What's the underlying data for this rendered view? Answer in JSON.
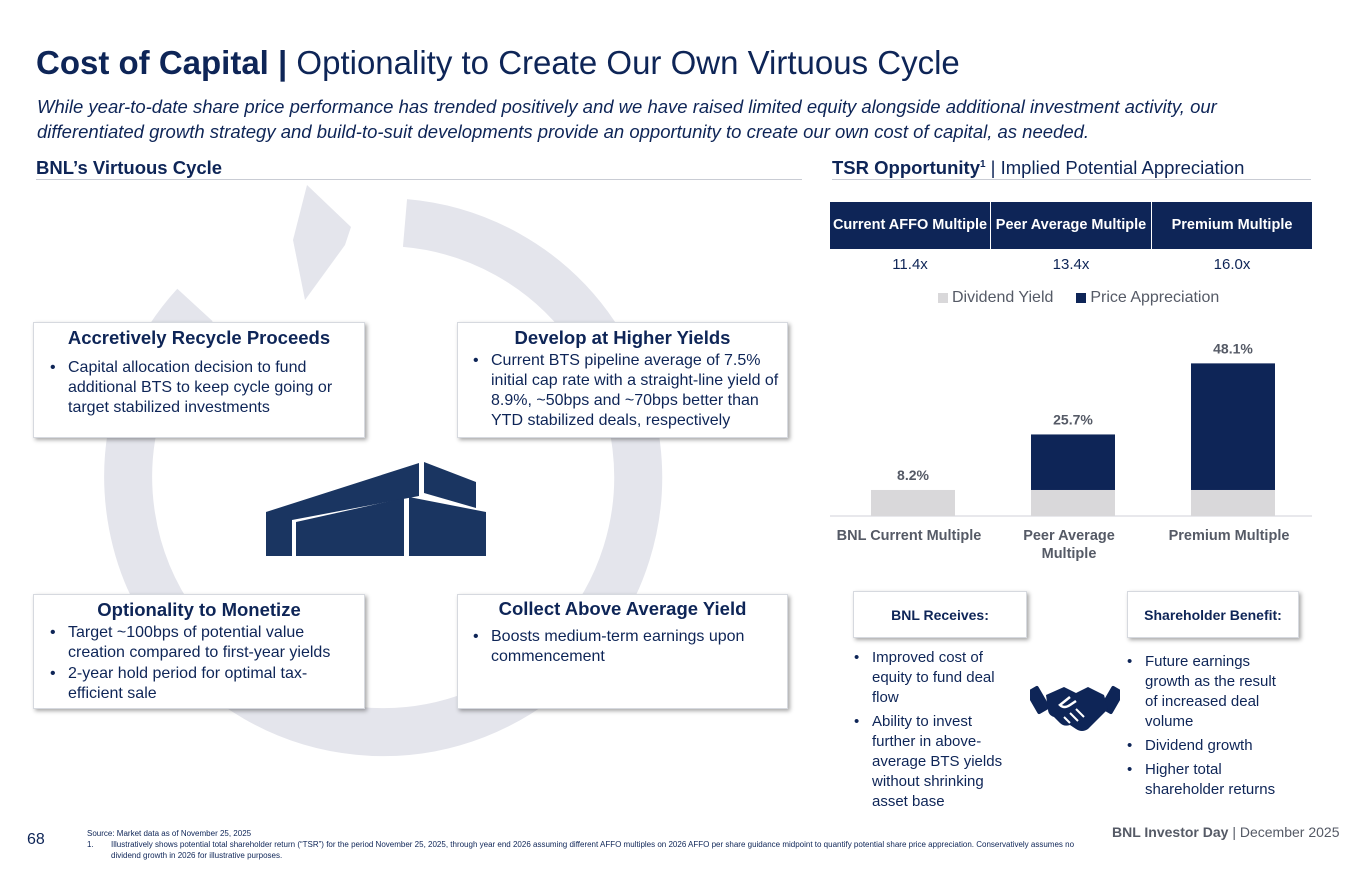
{
  "header": {
    "title_bold": "Cost of Capital |",
    "title_rest": " Optionality to Create Our Own Virtuous Cycle",
    "subtitle": "While year-to-date share price performance has trended positively and we have raised limited equity alongside additional investment activity, our differentiated growth strategy and build-to-suit developments provide an opportunity to create our own cost of capital, as needed."
  },
  "left_section": {
    "heading": "BNL’s Virtuous Cycle",
    "boxes": [
      {
        "title": "Accretively Recycle Proceeds",
        "bullets": [
          "Capital allocation decision to fund additional BTS to keep cycle going or target stabilized investments"
        ]
      },
      {
        "title": "Develop at Higher Yields",
        "bullets": [
          "Current BTS pipeline average of 7.5% initial cap rate with a straight-line yield of 8.9%, ~50bps and ~70bps better than YTD stabilized deals, respectively"
        ]
      },
      {
        "title": "Optionality to Monetize",
        "bullets": [
          "Target ~100bps of potential value creation compared to first-year yields",
          "2-year hold period for optimal tax-efficient sale"
        ]
      },
      {
        "title": "Collect Above Average Yield",
        "bullets": [
          "Boosts medium-term earnings upon commencement"
        ]
      }
    ]
  },
  "right_section": {
    "heading_bold": "TSR Opportunity",
    "heading_sup": "1",
    "heading_rest": " | Implied Potential Appreciation",
    "table": {
      "headers": [
        "Current AFFO Multiple",
        "Peer Average Multiple",
        "Premium Multiple"
      ],
      "values": [
        "11.4x",
        "13.4x",
        "16.0x"
      ]
    },
    "receives_label": "BNL Receives:",
    "receives_bullets": [
      "Improved cost of equity to fund deal flow",
      "Ability to invest further in above-average BTS yields without shrinking asset base"
    ],
    "benefit_label": "Shareholder Benefit:",
    "benefit_bullets": [
      "Future earnings growth as the result of increased deal volume",
      "Dividend growth",
      "Higher total shareholder returns"
    ]
  },
  "chart_data": {
    "type": "bar",
    "stacked": true,
    "categories": [
      "BNL Current Multiple",
      "Peer Average Multiple",
      "Premium Multiple"
    ],
    "series": [
      {
        "name": "Dividend Yield",
        "values": [
          8.2,
          8.2,
          8.2
        ],
        "color": "#d9d8da"
      },
      {
        "name": "Price Appreciation",
        "values": [
          0,
          17.5,
          39.9
        ],
        "color": "#0e2557"
      }
    ],
    "totals": [
      "8.2%",
      "25.7%",
      "48.1%"
    ],
    "ylim": [
      0,
      52
    ],
    "legend": "top",
    "grid": false
  },
  "footer": {
    "page_number": "68",
    "source": "Source: Market data as of November 25, 2025",
    "note_num": "1.",
    "note": "Illustratively shows potential total shareholder return (“TSR”) for the period November 25, 2025, through year end 2026 assuming different AFFO multiples on 2026 AFFO per share guidance midpoint to quantify potential share price appreciation. Conservatively assumes no dividend growth in 2026 for illustrative purposes.",
    "brand_bold": "BNL Investor Day",
    "brand_rest": " | December 2025"
  },
  "colors": {
    "navy": "#0e2557",
    "gray_bar": "#d9d8da",
    "cycle_gray": "#e4e5ec"
  }
}
